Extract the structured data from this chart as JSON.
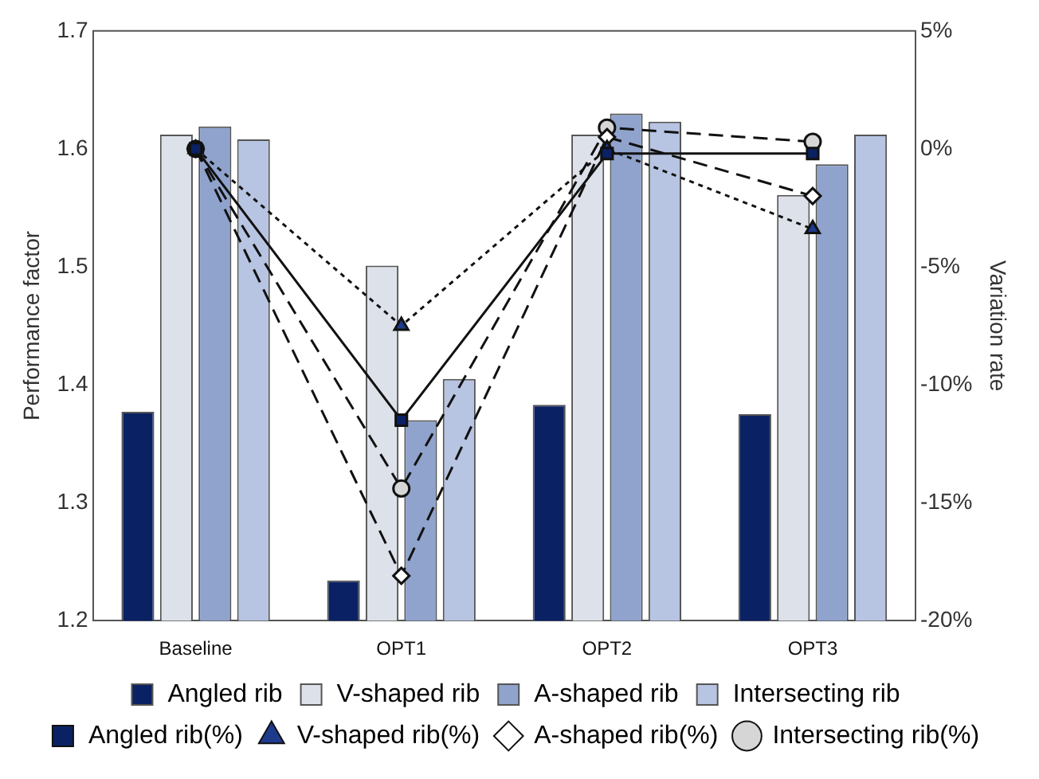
{
  "chart_data": {
    "type": "bar",
    "ylabel": "Performance factor",
    "y2label": "Variation rate",
    "categories": [
      "Baseline",
      "OPT1",
      "OPT2",
      "OPT3"
    ],
    "series": [
      {
        "name": "Angled rib",
        "color": "#0a2164",
        "values": [
          1.377,
          1.234,
          1.383,
          1.375
        ]
      },
      {
        "name": "V-shaped rib",
        "color": "#dde1ea",
        "values": [
          1.612,
          1.501,
          1.612,
          1.561
        ]
      },
      {
        "name": "A-shaped rib",
        "color": "#8fa3cc",
        "values": [
          1.619,
          1.37,
          1.63,
          1.587
        ]
      },
      {
        "name": "Intersecting rib",
        "color": "#b7c4e2",
        "values": [
          1.608,
          1.405,
          1.623,
          1.612
        ]
      },
      {
        "name": "Angled rib(%)",
        "type": "line",
        "axis": "y2",
        "color": "#0a2164",
        "marker": "square",
        "line_style": "solid",
        "values": [
          0,
          -11.5,
          -0.2,
          -0.2
        ]
      },
      {
        "name": "V-shaped rib(%)",
        "type": "line",
        "axis": "y2",
        "color": "#1d3a8c",
        "marker": "triangle",
        "line_style": "dotted",
        "values": [
          0,
          -7.5,
          0,
          -3.4
        ]
      },
      {
        "name": "A-shaped rib(%)",
        "type": "line",
        "axis": "y2",
        "color": "#ffffff",
        "marker": "diamond",
        "line_style": "dashed",
        "values": [
          0,
          -18.1,
          0.5,
          -2
        ]
      },
      {
        "name": "Intersecting rib(%)",
        "type": "line",
        "axis": "y2",
        "color": "#d6d6d6",
        "marker": "circle",
        "line_style": "dashed",
        "values": [
          0,
          -14.4,
          0.9,
          0.3
        ]
      }
    ],
    "ylim": [
      1.2,
      1.7
    ],
    "yticks": [
      1.2,
      1.3,
      1.4,
      1.5,
      1.6,
      1.7
    ],
    "y2lim": [
      -20,
      5
    ],
    "y2ticks": [
      {
        "value": -20,
        "label": "-20%"
      },
      {
        "value": -15,
        "label": "-15%"
      },
      {
        "value": -10,
        "label": "-10%"
      },
      {
        "value": -5,
        "label": "-5%"
      },
      {
        "value": 0,
        "label": "0%"
      },
      {
        "value": 5,
        "label": "5%"
      }
    ],
    "grid": false,
    "legend": "bottom"
  }
}
